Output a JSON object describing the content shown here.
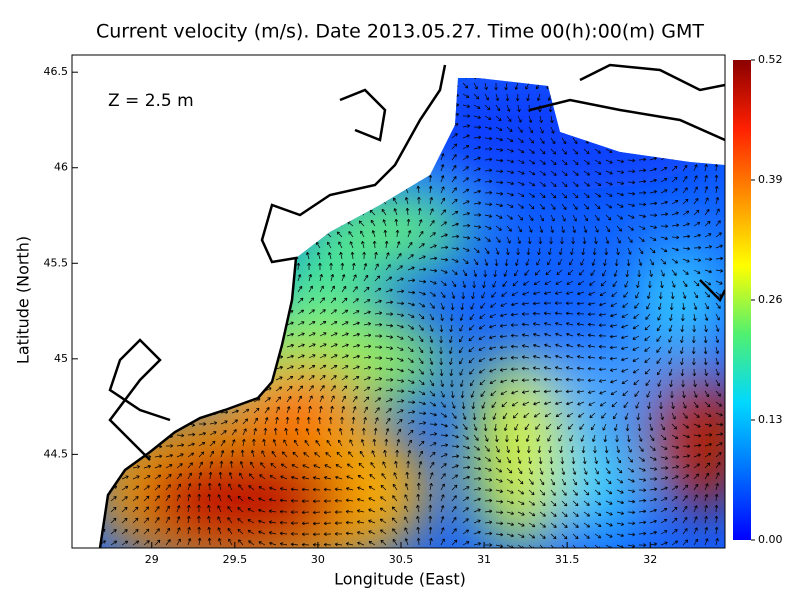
{
  "chart_data": {
    "type": "map",
    "title": "Current velocity (m/s). Date 2013.05.27. Time 00(h):00(m) GMT",
    "annotation": "Z = 2.5 m",
    "xlabel": "Longitude (East)",
    "ylabel": "Latitude (North)",
    "xlim": [
      28.52,
      32.45
    ],
    "xticks": [
      29,
      29.5,
      30,
      30.5,
      31,
      31.5,
      32
    ],
    "ylim": [
      44.01,
      46.59
    ],
    "yticks": [
      44.5,
      45,
      45.5,
      46,
      46.5
    ],
    "colorbar": {
      "lim": [
        0,
        0.52
      ],
      "ticks": [
        {
          "value": 0,
          "label": "0.00"
        },
        0.13,
        0.26,
        0.39,
        0.52
      ],
      "colors": [
        "#0000ff",
        "#0070ff",
        "#00d8ff",
        "#50f070",
        "#ffff00",
        "#ff9000",
        "#ff2000",
        "#8b0000"
      ]
    }
  }
}
